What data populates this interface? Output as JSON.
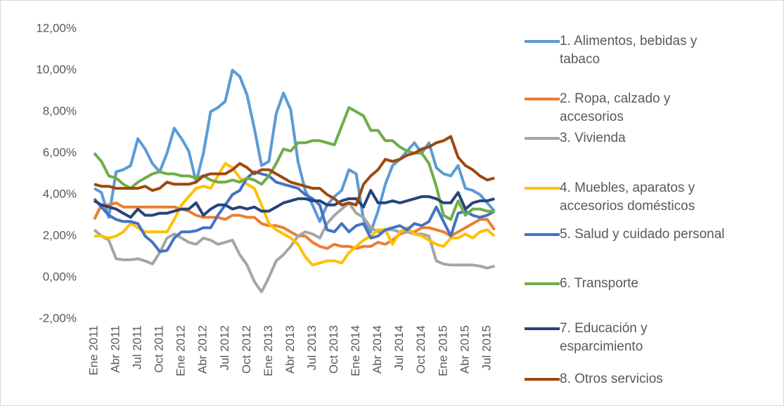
{
  "chart_data": {
    "type": "line",
    "categories": [
      "Ene 2011",
      null,
      null,
      "Abr 2011",
      null,
      null,
      "Jul 2011",
      null,
      null,
      "Oct 2011",
      null,
      null,
      "Ene 2012",
      null,
      null,
      "Abr 2012",
      null,
      null,
      "Jul 2012",
      null,
      null,
      "Oct 2012",
      null,
      null,
      "Ene 2013",
      null,
      null,
      "Abr 2013",
      null,
      null,
      "Jul 2013",
      null,
      null,
      "Oct 2013",
      null,
      null,
      "Ene 2014",
      null,
      null,
      "Abr 2014",
      null,
      null,
      "Jul 2014",
      null,
      null,
      "Oct 2014",
      null,
      null,
      "Ene 2015",
      null,
      null,
      "Abr 2015",
      null,
      null,
      "Jul 2015",
      null
    ],
    "ylim": [
      -2,
      12
    ],
    "yticks": [
      {
        "value": -2,
        "label": "-2,00%"
      },
      {
        "value": 0,
        "label": "0,00%"
      },
      {
        "value": 2,
        "label": "2,00%"
      },
      {
        "value": 4,
        "label": "4,00%"
      },
      {
        "value": 6,
        "label": "6,00%"
      },
      {
        "value": 8,
        "label": "8,00%"
      },
      {
        "value": 10,
        "label": "10,00%"
      },
      {
        "value": 12,
        "label": "12,00%"
      }
    ],
    "grid": false,
    "legend": "right",
    "series": [
      {
        "name": "1. Alimentos, bebidas y tabaco",
        "color": "#5b9bd5",
        "values": [
          4.3,
          4.1,
          2.9,
          5.1,
          5.2,
          5.4,
          6.7,
          6.2,
          5.5,
          5.1,
          6.0,
          7.2,
          6.7,
          6.1,
          4.6,
          6.0,
          8.0,
          8.2,
          8.5,
          10.0,
          9.7,
          8.8,
          7.2,
          5.4,
          5.6,
          7.9,
          8.9,
          8.1,
          5.6,
          4.2,
          3.5,
          2.7,
          3.5,
          3.9,
          4.2,
          5.2,
          5.0,
          2.8,
          2.2,
          3.2,
          4.5,
          5.4,
          5.7,
          6.1,
          6.5,
          6.0,
          6.5,
          5.3,
          5.0,
          4.9,
          5.4,
          4.3,
          4.2,
          4.0,
          3.6,
          3.2
        ]
      },
      {
        "name": "2. Ropa, calzado y accesorios",
        "color": "#ed7d31",
        "values": [
          2.8,
          3.5,
          3.5,
          3.6,
          3.4,
          3.4,
          3.4,
          3.4,
          3.4,
          3.4,
          3.4,
          3.4,
          3.3,
          3.2,
          3.0,
          2.9,
          2.9,
          2.9,
          2.8,
          3.0,
          3.0,
          2.9,
          2.9,
          2.6,
          2.5,
          2.5,
          2.4,
          2.2,
          2.0,
          2.0,
          1.7,
          1.5,
          1.4,
          1.6,
          1.5,
          1.5,
          1.4,
          1.5,
          1.5,
          1.7,
          1.6,
          1.8,
          2.1,
          2.2,
          2.2,
          2.4,
          2.4,
          2.3,
          2.2,
          2.0,
          2.2,
          2.4,
          2.6,
          2.8,
          2.8,
          2.3
        ]
      },
      {
        "name": "3. Vivienda",
        "color": "#a5a5a5",
        "values": [
          2.3,
          2.0,
          1.8,
          0.9,
          0.85,
          0.85,
          0.9,
          0.8,
          0.65,
          1.2,
          1.9,
          2.1,
          1.9,
          1.7,
          1.6,
          1.9,
          1.8,
          1.6,
          1.7,
          1.8,
          1.1,
          0.6,
          -0.2,
          -0.7,
          0.0,
          0.8,
          1.1,
          1.5,
          2.0,
          2.2,
          2.1,
          1.9,
          2.6,
          3.0,
          3.3,
          3.6,
          3.1,
          2.9,
          2.4,
          2.2,
          2.3,
          2.3,
          2.2,
          2.2,
          2.1,
          2.1,
          2.0,
          0.8,
          0.65,
          0.6,
          0.6,
          0.6,
          0.6,
          0.55,
          0.45,
          0.55
        ]
      },
      {
        "name": "4. Muebles, aparatos y accesorios domésticos",
        "color": "#ffc000",
        "values": [
          2.0,
          2.0,
          1.9,
          2.0,
          2.2,
          2.6,
          2.4,
          2.2,
          2.2,
          2.2,
          2.2,
          2.8,
          3.5,
          3.9,
          4.3,
          4.4,
          4.3,
          4.9,
          5.5,
          5.3,
          4.8,
          4.5,
          4.3,
          3.5,
          2.6,
          2.3,
          2.1,
          1.9,
          1.6,
          1.0,
          0.6,
          0.7,
          0.8,
          0.8,
          0.7,
          1.2,
          1.5,
          1.8,
          2.0,
          2.3,
          2.3,
          1.6,
          2.2,
          2.4,
          2.1,
          2.0,
          1.8,
          1.6,
          1.5,
          1.9,
          1.9,
          2.1,
          1.9,
          2.2,
          2.3,
          2.0
        ]
      },
      {
        "name": "5. Salud y cuidado personal",
        "color": "#4472c4",
        "values": [
          3.8,
          3.4,
          3.0,
          2.8,
          2.7,
          2.7,
          2.6,
          2.0,
          1.7,
          1.25,
          1.3,
          1.9,
          2.2,
          2.2,
          2.25,
          2.4,
          2.4,
          3.0,
          3.5,
          4.0,
          4.2,
          4.8,
          5.1,
          5.0,
          4.9,
          4.6,
          4.5,
          4.4,
          4.3,
          4.0,
          3.8,
          3.5,
          2.3,
          2.2,
          2.6,
          2.2,
          2.5,
          2.6,
          1.9,
          2.0,
          2.3,
          2.4,
          2.5,
          2.3,
          2.6,
          2.5,
          2.7,
          3.4,
          2.7,
          2.0,
          3.1,
          3.2,
          3.0,
          2.9,
          3.0,
          3.2
        ]
      },
      {
        "name": "6. Transporte",
        "color": "#70ad47",
        "values": [
          6.0,
          5.6,
          4.9,
          4.8,
          4.5,
          4.3,
          4.6,
          4.8,
          5.0,
          5.1,
          5.0,
          5.0,
          4.9,
          4.9,
          4.8,
          4.9,
          4.7,
          4.6,
          4.6,
          4.7,
          4.6,
          4.8,
          4.7,
          4.5,
          4.9,
          5.5,
          6.2,
          6.1,
          6.5,
          6.5,
          6.6,
          6.6,
          6.5,
          6.4,
          7.3,
          8.2,
          8.0,
          7.8,
          7.1,
          7.1,
          6.6,
          6.6,
          6.3,
          6.1,
          6.0,
          6.0,
          5.5,
          4.4,
          3.0,
          2.8,
          3.7,
          3.0,
          3.3,
          3.3,
          3.2,
          3.2
        ]
      },
      {
        "name": "7. Educación y esparcimiento",
        "color": "#264478",
        "values": [
          3.7,
          3.5,
          3.4,
          3.3,
          3.1,
          2.9,
          3.3,
          3.0,
          3.0,
          3.1,
          3.1,
          3.2,
          3.3,
          3.3,
          3.6,
          3.0,
          3.3,
          3.5,
          3.5,
          3.3,
          3.4,
          3.3,
          3.4,
          3.2,
          3.2,
          3.4,
          3.6,
          3.7,
          3.8,
          3.8,
          3.7,
          3.7,
          3.5,
          3.5,
          3.7,
          3.8,
          3.8,
          3.4,
          4.2,
          3.6,
          3.6,
          3.7,
          3.6,
          3.7,
          3.8,
          3.9,
          3.9,
          3.8,
          3.6,
          3.6,
          4.1,
          3.3,
          3.6,
          3.7,
          3.7,
          3.8
        ]
      },
      {
        "name": "8. Otros servicios",
        "color": "#9e480e",
        "values": [
          4.5,
          4.4,
          4.4,
          4.3,
          4.3,
          4.3,
          4.3,
          4.4,
          4.2,
          4.3,
          4.6,
          4.5,
          4.5,
          4.5,
          4.6,
          4.9,
          5.0,
          5.0,
          5.0,
          5.2,
          5.5,
          5.3,
          5.0,
          5.2,
          5.2,
          5.0,
          4.8,
          4.6,
          4.5,
          4.4,
          4.3,
          4.3,
          4.0,
          3.8,
          3.5,
          3.6,
          3.5,
          4.5,
          4.9,
          5.2,
          5.7,
          5.6,
          5.7,
          5.9,
          6.0,
          6.2,
          6.3,
          6.5,
          6.6,
          6.8,
          5.8,
          5.4,
          5.2,
          4.9,
          4.7,
          4.8
        ]
      }
    ]
  }
}
